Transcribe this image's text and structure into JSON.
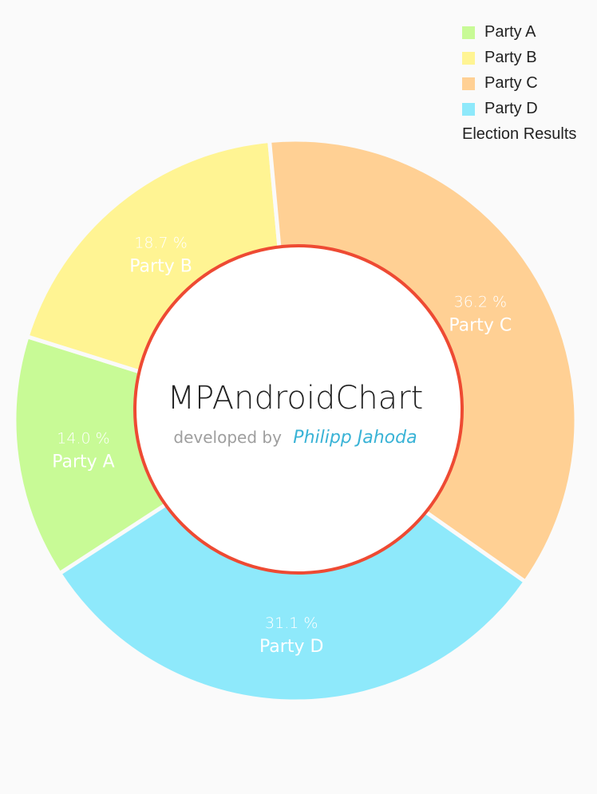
{
  "chart_data": {
    "type": "pie",
    "subtype": "donut",
    "categories": [
      "Party A",
      "Party B",
      "Party C",
      "Party D"
    ],
    "values": [
      14.0,
      18.7,
      36.2,
      31.1
    ],
    "value_labels": [
      "14.0 %",
      "18.7 %",
      "36.2 %",
      "31.1 %"
    ],
    "colors": [
      "#c8fa96",
      "#fff493",
      "#ffd094",
      "#8ee9fb"
    ],
    "legend_title": "Election Results",
    "legend_position": "top-right",
    "hole_color": "#ffffff",
    "hole_ring_color": "#ee4a33",
    "slice_separator_color": "#fafafa",
    "center_text": {
      "title": "MPAndroidChart",
      "prefix": "developed by",
      "author": "Philipp Jahoda",
      "author_color": "#39b3d6",
      "prefix_color": "#9e9e9e",
      "title_color": "#222222"
    },
    "label_color": "#ffffff"
  }
}
